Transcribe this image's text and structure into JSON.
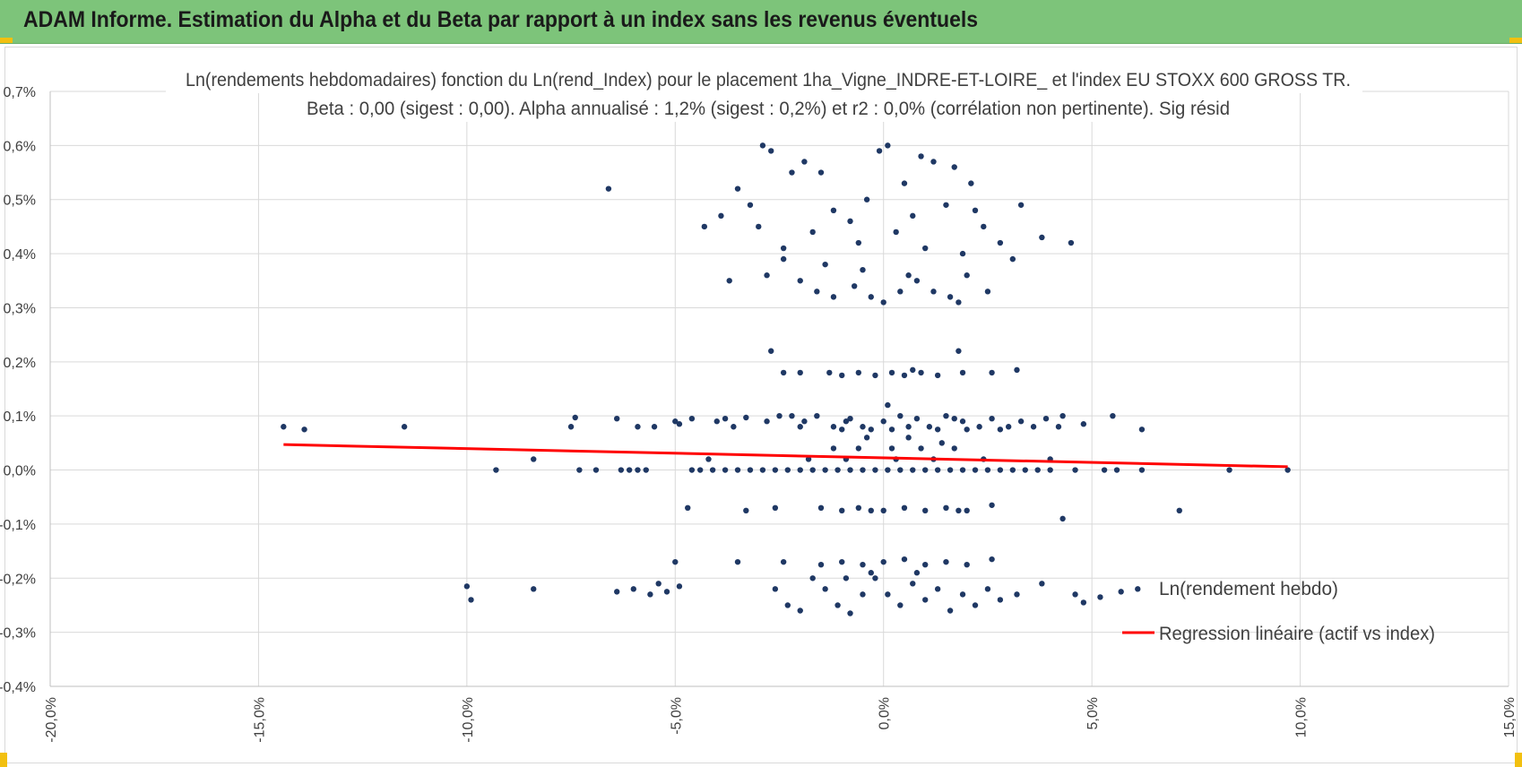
{
  "header": {
    "title": "ADAM Informe. Estimation du Alpha et du Beta par rapport à un index sans les revenus éventuels"
  },
  "colors": {
    "banner": "#7dc47a",
    "points": "#1f3864",
    "regression": "#ff0000",
    "grid": "#d9d9d9",
    "accent": "#f2c010"
  },
  "chart_data": {
    "type": "scatter",
    "title_line1": "Ln(rendements hebdomadaires) fonction du Ln(rend_Index) pour le placement 1ha_Vigne_INDRE-ET-LOIRE_ et l'index EU STOXX 600 GROSS TR.",
    "title_line2": "Beta : 0,00 (sigest : 0,00). Alpha annualisé : 1,2% (sigest : 0,2%) et r2 : 0,0% (corrélation non pertinente). Sig résid",
    "xlabel": "",
    "ylabel": "",
    "xlim": [
      -20,
      15
    ],
    "ylim": [
      -0.4,
      0.7
    ],
    "x_ticks": [
      -20,
      -15,
      -10,
      -5,
      0,
      5,
      10,
      15
    ],
    "x_tick_labels": [
      "-20,0%",
      "-15,0%",
      "-10,0%",
      "-5,0%",
      "0,0%",
      "5,0%",
      "10,0%",
      "15,0%"
    ],
    "y_ticks": [
      0.7,
      0.6,
      0.5,
      0.4,
      0.3,
      0.2,
      0.1,
      0.0,
      -0.1,
      -0.2,
      -0.3,
      -0.4
    ],
    "y_tick_labels": [
      "0,7%",
      "0,6%",
      "0,5%",
      "0,4%",
      "0,3%",
      "0,2%",
      "0,1%",
      "0,0%",
      "-0,1%",
      "-0,2%",
      "-0,3%",
      "-0,4%"
    ],
    "grid": true,
    "legend": {
      "position": "right",
      "entries": [
        {
          "label": "Ln(rendement hebdo)",
          "kind": "marker"
        },
        {
          "label": "Regression linéaire (actif vs index)",
          "kind": "line"
        }
      ]
    },
    "regression": {
      "x": [
        -14.4,
        9.7
      ],
      "y": [
        0.047,
        0.006
      ]
    },
    "series": [
      {
        "name": "Ln(rendement hebdo)",
        "points": [
          [
            -14.4,
            0.08
          ],
          [
            -13.9,
            0.075
          ],
          [
            -11.5,
            0.08
          ],
          [
            -7.5,
            0.08
          ],
          [
            -7.4,
            0.097
          ],
          [
            -6.4,
            0.095
          ],
          [
            -5.9,
            0.08
          ],
          [
            -5.5,
            0.08
          ],
          [
            -5.0,
            0.09
          ],
          [
            -4.9,
            0.085
          ],
          [
            -4.6,
            0.095
          ],
          [
            -4.0,
            0.09
          ],
          [
            -3.8,
            0.095
          ],
          [
            -3.3,
            0.097
          ],
          [
            -3.6,
            0.08
          ],
          [
            -2.8,
            0.09
          ],
          [
            -2.5,
            0.1
          ],
          [
            -2.2,
            0.1
          ],
          [
            -1.9,
            0.09
          ],
          [
            -1.6,
            0.1
          ],
          [
            -1.2,
            0.08
          ],
          [
            -0.9,
            0.09
          ],
          [
            -0.5,
            0.08
          ],
          [
            0.0,
            0.09
          ],
          [
            0.4,
            0.1
          ],
          [
            0.8,
            0.095
          ],
          [
            1.1,
            0.08
          ],
          [
            1.5,
            0.1
          ],
          [
            1.9,
            0.09
          ],
          [
            2.3,
            0.08
          ],
          [
            2.6,
            0.095
          ],
          [
            3.0,
            0.08
          ],
          [
            3.3,
            0.09
          ],
          [
            3.9,
            0.095
          ],
          [
            4.2,
            0.08
          ],
          [
            4.3,
            0.1
          ],
          [
            4.8,
            0.085
          ],
          [
            5.5,
            0.1
          ],
          [
            6.2,
            0.075
          ],
          [
            -2.0,
            0.08
          ],
          [
            -1.0,
            0.075
          ],
          [
            -0.3,
            0.075
          ],
          [
            0.2,
            0.075
          ],
          [
            0.6,
            0.08
          ],
          [
            1.3,
            0.075
          ],
          [
            2.0,
            0.075
          ],
          [
            2.8,
            0.075
          ],
          [
            3.6,
            0.08
          ],
          [
            -0.8,
            0.095
          ],
          [
            1.7,
            0.095
          ],
          [
            -9.3,
            0.0
          ],
          [
            -8.4,
            0.02
          ],
          [
            -7.3,
            0.0
          ],
          [
            -6.9,
            0.0
          ],
          [
            -6.3,
            0.0
          ],
          [
            -6.1,
            0.0
          ],
          [
            -5.9,
            0.0
          ],
          [
            -5.7,
            0.0
          ],
          [
            -4.6,
            0.0
          ],
          [
            -4.4,
            0.0
          ],
          [
            -4.1,
            0.0
          ],
          [
            -3.8,
            0.0
          ],
          [
            -3.5,
            0.0
          ],
          [
            -3.2,
            0.0
          ],
          [
            -2.9,
            0.0
          ],
          [
            -2.6,
            0.0
          ],
          [
            -2.3,
            0.0
          ],
          [
            -2.0,
            0.0
          ],
          [
            -1.7,
            0.0
          ],
          [
            -1.4,
            0.0
          ],
          [
            -1.1,
            0.0
          ],
          [
            -0.8,
            0.0
          ],
          [
            -0.5,
            0.0
          ],
          [
            -0.2,
            0.0
          ],
          [
            0.1,
            0.0
          ],
          [
            0.4,
            0.0
          ],
          [
            0.7,
            0.0
          ],
          [
            1.0,
            0.0
          ],
          [
            1.3,
            0.0
          ],
          [
            1.6,
            0.0
          ],
          [
            1.9,
            0.0
          ],
          [
            2.2,
            0.0
          ],
          [
            2.5,
            0.0
          ],
          [
            2.8,
            0.0
          ],
          [
            3.1,
            0.0
          ],
          [
            3.4,
            0.0
          ],
          [
            3.7,
            0.0
          ],
          [
            4.0,
            0.0
          ],
          [
            4.6,
            0.0
          ],
          [
            5.3,
            0.0
          ],
          [
            5.6,
            0.0
          ],
          [
            6.2,
            0.0
          ],
          [
            8.3,
            0.0
          ],
          [
            9.7,
            0.0
          ],
          [
            -4.2,
            0.02
          ],
          [
            -1.8,
            0.02
          ],
          [
            -0.9,
            0.02
          ],
          [
            0.3,
            0.02
          ],
          [
            1.2,
            0.02
          ],
          [
            2.4,
            0.02
          ],
          [
            4.0,
            0.02
          ],
          [
            -1.2,
            0.04
          ],
          [
            -0.6,
            0.04
          ],
          [
            0.2,
            0.04
          ],
          [
            0.9,
            0.04
          ],
          [
            1.7,
            0.04
          ],
          [
            0.1,
            0.12
          ],
          [
            -0.4,
            0.06
          ],
          [
            0.6,
            0.06
          ],
          [
            1.4,
            0.05
          ],
          [
            -4.7,
            -0.07
          ],
          [
            -3.3,
            -0.075
          ],
          [
            -2.6,
            -0.07
          ],
          [
            -1.5,
            -0.07
          ],
          [
            -1.0,
            -0.075
          ],
          [
            -0.6,
            -0.07
          ],
          [
            0.0,
            -0.075
          ],
          [
            0.5,
            -0.07
          ],
          [
            1.0,
            -0.075
          ],
          [
            1.5,
            -0.07
          ],
          [
            2.0,
            -0.075
          ],
          [
            2.6,
            -0.065
          ],
          [
            7.1,
            -0.075
          ],
          [
            4.3,
            -0.09
          ],
          [
            -0.3,
            -0.075
          ],
          [
            1.8,
            -0.075
          ],
          [
            -2.7,
            0.22
          ],
          [
            -2.4,
            0.18
          ],
          [
            -2.0,
            0.18
          ],
          [
            -1.3,
            0.18
          ],
          [
            -1.0,
            0.175
          ],
          [
            -0.6,
            0.18
          ],
          [
            -0.2,
            0.175
          ],
          [
            0.2,
            0.18
          ],
          [
            0.5,
            0.175
          ],
          [
            0.9,
            0.18
          ],
          [
            1.3,
            0.175
          ],
          [
            1.8,
            0.22
          ],
          [
            1.9,
            0.18
          ],
          [
            2.6,
            0.18
          ],
          [
            3.2,
            0.185
          ],
          [
            0.7,
            0.185
          ],
          [
            -3.7,
            0.35
          ],
          [
            -2.8,
            0.36
          ],
          [
            -2.4,
            0.39
          ],
          [
            -2.0,
            0.35
          ],
          [
            -1.6,
            0.33
          ],
          [
            -1.2,
            0.32
          ],
          [
            -0.7,
            0.34
          ],
          [
            -0.3,
            0.32
          ],
          [
            0.0,
            0.31
          ],
          [
            0.4,
            0.33
          ],
          [
            0.8,
            0.35
          ],
          [
            1.2,
            0.33
          ],
          [
            1.6,
            0.32
          ],
          [
            2.0,
            0.36
          ],
          [
            2.5,
            0.33
          ],
          [
            3.1,
            0.39
          ],
          [
            -1.4,
            0.38
          ],
          [
            -0.5,
            0.37
          ],
          [
            0.6,
            0.36
          ],
          [
            1.8,
            0.31
          ],
          [
            -4.3,
            0.45
          ],
          [
            -3.9,
            0.47
          ],
          [
            -3.5,
            0.52
          ],
          [
            -3.2,
            0.49
          ],
          [
            -2.9,
            0.6
          ],
          [
            -2.7,
            0.59
          ],
          [
            -2.2,
            0.55
          ],
          [
            -1.9,
            0.57
          ],
          [
            -1.5,
            0.55
          ],
          [
            -1.2,
            0.48
          ],
          [
            -0.8,
            0.46
          ],
          [
            -0.4,
            0.5
          ],
          [
            -0.1,
            0.59
          ],
          [
            0.1,
            0.6
          ],
          [
            0.5,
            0.53
          ],
          [
            0.9,
            0.58
          ],
          [
            1.2,
            0.57
          ],
          [
            1.7,
            0.56
          ],
          [
            2.1,
            0.53
          ],
          [
            2.4,
            0.45
          ],
          [
            2.8,
            0.42
          ],
          [
            3.3,
            0.49
          ],
          [
            3.8,
            0.43
          ],
          [
            4.5,
            0.42
          ],
          [
            -6.6,
            0.52
          ],
          [
            -3.0,
            0.45
          ],
          [
            -0.6,
            0.42
          ],
          [
            0.3,
            0.44
          ],
          [
            1.0,
            0.41
          ],
          [
            1.9,
            0.4
          ],
          [
            -1.7,
            0.44
          ],
          [
            2.2,
            0.48
          ],
          [
            0.7,
            0.47
          ],
          [
            -2.4,
            0.41
          ],
          [
            1.5,
            0.49
          ],
          [
            -10.0,
            -0.215
          ],
          [
            -9.9,
            -0.24
          ],
          [
            -8.4,
            -0.22
          ],
          [
            -6.4,
            -0.225
          ],
          [
            -6.0,
            -0.22
          ],
          [
            -5.6,
            -0.23
          ],
          [
            -5.4,
            -0.21
          ],
          [
            -5.2,
            -0.225
          ],
          [
            -4.9,
            -0.215
          ],
          [
            -5.0,
            -0.17
          ],
          [
            -3.5,
            -0.17
          ],
          [
            -2.6,
            -0.22
          ],
          [
            -2.3,
            -0.25
          ],
          [
            -2.0,
            -0.26
          ],
          [
            -1.7,
            -0.2
          ],
          [
            -1.4,
            -0.22
          ],
          [
            -1.1,
            -0.25
          ],
          [
            -0.8,
            -0.265
          ],
          [
            -0.5,
            -0.23
          ],
          [
            -0.2,
            -0.2
          ],
          [
            0.1,
            -0.23
          ],
          [
            0.4,
            -0.25
          ],
          [
            0.7,
            -0.21
          ],
          [
            1.0,
            -0.24
          ],
          [
            1.3,
            -0.22
          ],
          [
            1.6,
            -0.26
          ],
          [
            1.9,
            -0.23
          ],
          [
            2.2,
            -0.25
          ],
          [
            2.5,
            -0.22
          ],
          [
            2.8,
            -0.24
          ],
          [
            3.2,
            -0.23
          ],
          [
            3.8,
            -0.21
          ],
          [
            4.6,
            -0.23
          ],
          [
            4.8,
            -0.245
          ],
          [
            5.2,
            -0.235
          ],
          [
            5.7,
            -0.225
          ],
          [
            6.1,
            -0.22
          ],
          [
            -1.5,
            -0.175
          ],
          [
            -1.0,
            -0.17
          ],
          [
            -0.5,
            -0.175
          ],
          [
            0.0,
            -0.17
          ],
          [
            0.5,
            -0.165
          ],
          [
            1.0,
            -0.175
          ],
          [
            1.5,
            -0.17
          ],
          [
            2.0,
            -0.175
          ],
          [
            2.6,
            -0.165
          ],
          [
            -2.4,
            -0.17
          ],
          [
            -0.3,
            -0.19
          ],
          [
            0.8,
            -0.19
          ],
          [
            -0.9,
            -0.2
          ]
        ]
      }
    ]
  }
}
